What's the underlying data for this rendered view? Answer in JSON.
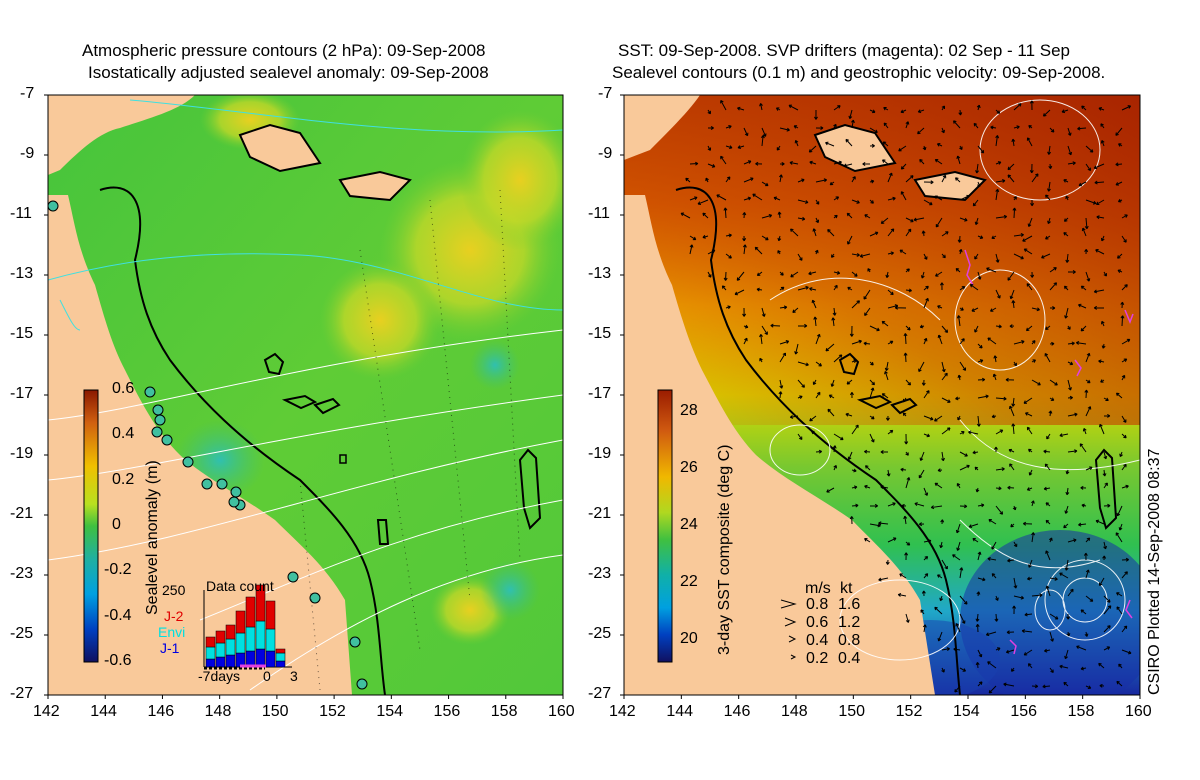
{
  "left_panel": {
    "title_line1": "Atmospheric pressure contours (2 hPa): 09-Sep-2008",
    "title_line2": "Isostatically adjusted sealevel anomaly: 09-Sep-2008",
    "colorbar": {
      "label": "Sealevel anomaly (m)",
      "ticks": [
        "0.6",
        "0.4",
        "0.2",
        "0",
        "-0.2",
        "-0.4",
        "-0.6"
      ]
    },
    "data_count": {
      "title": "Data count",
      "max_label": "250",
      "satellites": [
        {
          "name": "J-2",
          "color": "#e00000"
        },
        {
          "name": "Envi",
          "color": "#00e0e0"
        },
        {
          "name": "J-1",
          "color": "#0000e0"
        }
      ],
      "x_labels": [
        "-7days",
        "0",
        "3"
      ]
    }
  },
  "right_panel": {
    "title_line1": "SST: 09-Sep-2008. SVP drifters (magenta): 02 Sep - 11 Sep",
    "title_line2": "Sealevel contours (0.1 m) and geostrophic velocity: 09-Sep-2008.",
    "colorbar": {
      "label": "3-day SST composite (deg C)",
      "ticks": [
        "28",
        "26",
        "24",
        "22",
        "20"
      ]
    },
    "velocity_key": {
      "header_ms": "m/s",
      "header_kt": "kt",
      "rows": [
        {
          "ms": "0.8",
          "kt": "1.6"
        },
        {
          "ms": "0.6",
          "kt": "1.2"
        },
        {
          "ms": "0.4",
          "kt": "0.8"
        },
        {
          "ms": "0.2",
          "kt": "0.4"
        }
      ]
    }
  },
  "axes": {
    "lat_ticks": [
      "-7",
      "-9",
      "-11",
      "-13",
      "-15",
      "-17",
      "-19",
      "-21",
      "-23",
      "-25",
      "-27"
    ],
    "lon_ticks": [
      "142",
      "144",
      "146",
      "148",
      "150",
      "152",
      "154",
      "156",
      "158",
      "160"
    ]
  },
  "credit": "CSIRO Plotted 14-Sep-2008 08:37",
  "colors": {
    "land": "#f9c99a",
    "ssla_mid": "#48c83a",
    "sst_warm": "#b83000",
    "sst_cool": "#1a2ca8"
  }
}
